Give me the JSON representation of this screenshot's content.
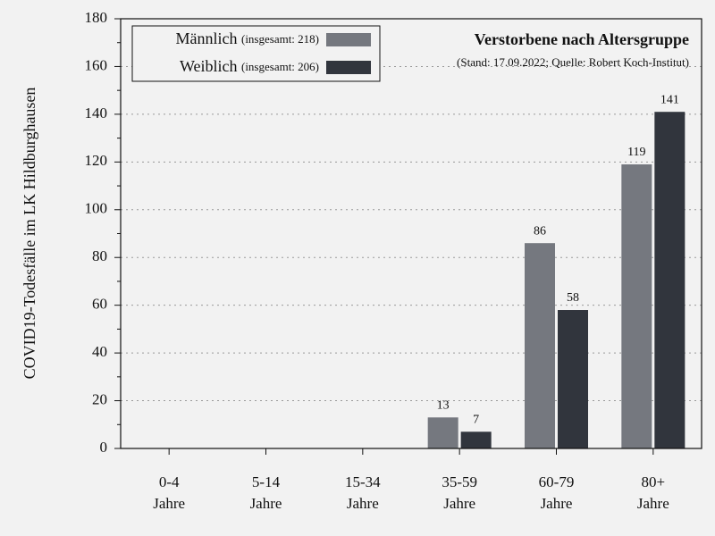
{
  "chart_data": {
    "type": "bar",
    "title": "Verstorbene nach Altersgruppe",
    "subtitle": "(Stand: 17.09.2022; Quelle: Robert Koch-Institut)",
    "y_label": "COVID19-Todesfälle im LK Hildburghausen",
    "categories": [
      "0-4\nJahre",
      "5-14\nJahre",
      "15-34\nJahre",
      "35-59\nJahre",
      "60-79\nJahre",
      "80+\nJahre"
    ],
    "series": [
      {
        "name": "Männlich",
        "total_label": "(insgesamt: 218)",
        "color": "#75787f",
        "values": [
          0,
          0,
          0,
          13,
          86,
          119
        ]
      },
      {
        "name": "Weiblich",
        "total_label": "(insgesamt: 206)",
        "color": "#31353d",
        "values": [
          0,
          0,
          0,
          7,
          58,
          141
        ]
      }
    ],
    "ylim": [
      0,
      180
    ],
    "yticks": [
      0,
      20,
      40,
      60,
      80,
      100,
      120,
      140,
      160,
      180
    ],
    "grid": true,
    "legend": "upper left"
  }
}
